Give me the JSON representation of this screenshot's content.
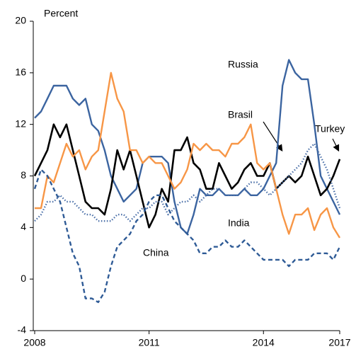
{
  "chart_data": {
    "type": "line",
    "y_axis_label": "Percent",
    "categories": [
      "2008",
      null,
      null,
      null,
      null,
      null,
      null,
      null,
      null,
      null,
      null,
      null,
      null,
      null,
      null,
      null,
      null,
      null,
      "2011",
      null,
      null,
      null,
      null,
      null,
      null,
      null,
      null,
      null,
      null,
      null,
      null,
      null,
      null,
      null,
      null,
      null,
      "2014",
      null,
      null,
      null,
      null,
      null,
      null,
      null,
      null,
      null,
      null,
      null,
      "2017"
    ],
    "ylim": [
      -4,
      20
    ],
    "yticks": [
      -4,
      0,
      4,
      8,
      12,
      16,
      20
    ],
    "grid": false,
    "series": [
      {
        "name": "Russia",
        "color": "#3b64a0",
        "dash": "solid",
        "values": [
          12.5,
          13,
          14,
          15,
          15,
          15,
          14,
          13.5,
          14,
          12,
          11.5,
          10,
          8,
          7,
          6,
          6.5,
          7,
          9,
          9.5,
          9.5,
          9.5,
          9,
          6,
          4,
          3.5,
          5,
          7,
          6.5,
          6.5,
          7,
          6.5,
          6.5,
          6.5,
          7,
          6.5,
          6.5,
          7,
          8,
          9,
          15,
          17,
          16,
          15.5,
          15.5,
          12,
          8,
          7,
          6,
          5
        ]
      },
      {
        "name": "Turkey",
        "color": "#000000",
        "dash": "solid",
        "values": [
          8,
          9,
          10,
          12,
          11,
          12,
          10,
          8,
          6,
          5.5,
          5.5,
          5,
          7,
          10,
          8.5,
          10,
          8,
          6,
          4,
          5,
          7,
          6,
          10,
          10,
          11,
          9,
          8.5,
          7,
          7,
          9,
          8,
          7,
          7.5,
          8.5,
          9,
          8,
          8,
          9,
          7,
          7.5,
          8,
          7.5,
          8,
          9.5,
          8,
          6.5,
          7,
          8,
          9.3
        ]
      },
      {
        "name": "Brasil",
        "color": "#f79646",
        "dash": "solid",
        "values": [
          5.5,
          5.5,
          8,
          7.5,
          9,
          10.5,
          9.5,
          10,
          8.5,
          9.5,
          10,
          13,
          16,
          14,
          13,
          10,
          10,
          9,
          9.5,
          9,
          9,
          8,
          7,
          7.5,
          8.5,
          10.5,
          10,
          10.5,
          10,
          10,
          9.5,
          10.5,
          10.5,
          11,
          12,
          9,
          8.5,
          9,
          7,
          5,
          3.5,
          5,
          5,
          5.5,
          3.8,
          5,
          5.5,
          4,
          3.2
        ]
      },
      {
        "name": "India",
        "color": "#4a6fa8",
        "dash": "dotted",
        "values": [
          4.5,
          5,
          6,
          6,
          6.5,
          6,
          6,
          5.5,
          5,
          5,
          4.5,
          4.5,
          4.5,
          5,
          5,
          4.5,
          5,
          5.5,
          5.5,
          6,
          6,
          5,
          5.5,
          6,
          6,
          6.5,
          6,
          6.5,
          7,
          7,
          6.5,
          6.5,
          6.5,
          7,
          7.5,
          7.5,
          7,
          6.5,
          7,
          7.5,
          8,
          8.5,
          9,
          10,
          10.5,
          9.5,
          8.5,
          7,
          5.5
        ]
      },
      {
        "name": "China",
        "color": "#2f5b96",
        "dash": "dashed",
        "values": [
          7,
          8.5,
          8,
          7,
          6,
          4,
          2,
          1,
          -1.5,
          -1.5,
          -1.8,
          -1,
          1,
          2.5,
          3,
          3.5,
          4.5,
          5,
          6,
          6.5,
          6.5,
          5.5,
          4.5,
          4,
          3.5,
          3,
          2,
          2,
          2.5,
          2.5,
          3,
          2.5,
          2.5,
          3,
          2.5,
          2,
          1.5,
          1.5,
          1.5,
          1.5,
          1,
          1.5,
          1.5,
          1.5,
          2,
          2,
          2,
          1.5,
          2.5
        ]
      }
    ]
  }
}
